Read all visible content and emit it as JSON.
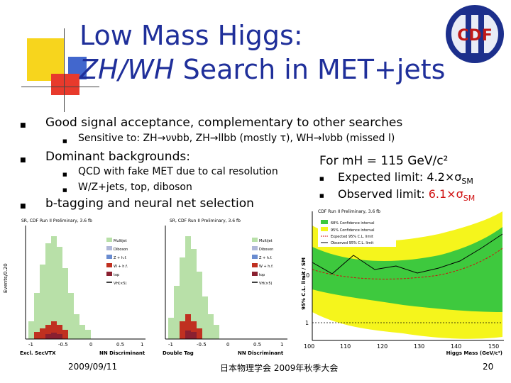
{
  "title": {
    "line1": "Low Mass Higgs:",
    "line2_italic": "ZH/WH",
    "line2_rest": " Search in MET+jets"
  },
  "logo": {
    "text": "CDF",
    "roman": "II"
  },
  "bullets": {
    "b1": "Good signal acceptance, complementary to other searches",
    "b1_sub1": "Sensitive to:  ZH→ννbb,  ZH→llbb (mostly τ), WH→lνbb (missed l)",
    "b2": "Dominant backgrounds:",
    "b2_sub1": "QCD with fake MET due to cal resolution",
    "b2_sub2": "W/Z+jets, top, diboson",
    "b3": "b-tagging and neural net selection"
  },
  "right_box": {
    "heading": "For mH = 115 GeV/c²",
    "expected_label": "Expected limit: ",
    "expected_value": "4.2×σ",
    "expected_sub": "SM",
    "observed_label": "Observed limit: ",
    "observed_value": "6.1×σ",
    "observed_sub": "SM"
  },
  "footer": {
    "date": "2009/09/11",
    "event": "日本物理学会 2009年秋季大会",
    "page": "20"
  },
  "plots": {
    "left_header": "SR, CDF Run II Preliminary, 3.6 fb",
    "left_caption": "Excl. SecVTX",
    "left_xlabel": "NN Discriminant",
    "left_ylabel": "Events/0.20",
    "mid_header": "SR, CDF Run II Preliminary, 3.6 fb",
    "mid_caption": "Double Tag",
    "mid_xlabel": "NN Discriminant",
    "legend": [
      "Multijet",
      "Diboson",
      "Z + h.f.",
      "W + h.f.",
      "top",
      "VH(×5)"
    ],
    "limit_header": "CDF Run II Preliminary, 3.6 fb",
    "limit_ylabel": "95% C.L. limit / SM",
    "limit_xlabel": "Higgs Mass (GeV/c²)",
    "limit_legend": [
      "68% Confidence interval",
      "95% Confidence interval",
      "Expected 95% C.L. limit",
      "Observed 95% C.L. limit"
    ],
    "limit_xticks": [
      "100",
      "110",
      "120",
      "130",
      "140",
      "150"
    ],
    "limit_yticks": [
      "1",
      "10"
    ],
    "disc_xticks": [
      "-1",
      "-0.5",
      "0",
      "0.5",
      "1"
    ],
    "colors": {
      "green_band": "#3ec93e",
      "yellow_band": "#f5f51c",
      "multijet": "#b8e0a8",
      "diboson": "#b0b8d8",
      "zhf": "#6a8cd0",
      "whf": "#c03020",
      "top": "#8a2030"
    }
  }
}
